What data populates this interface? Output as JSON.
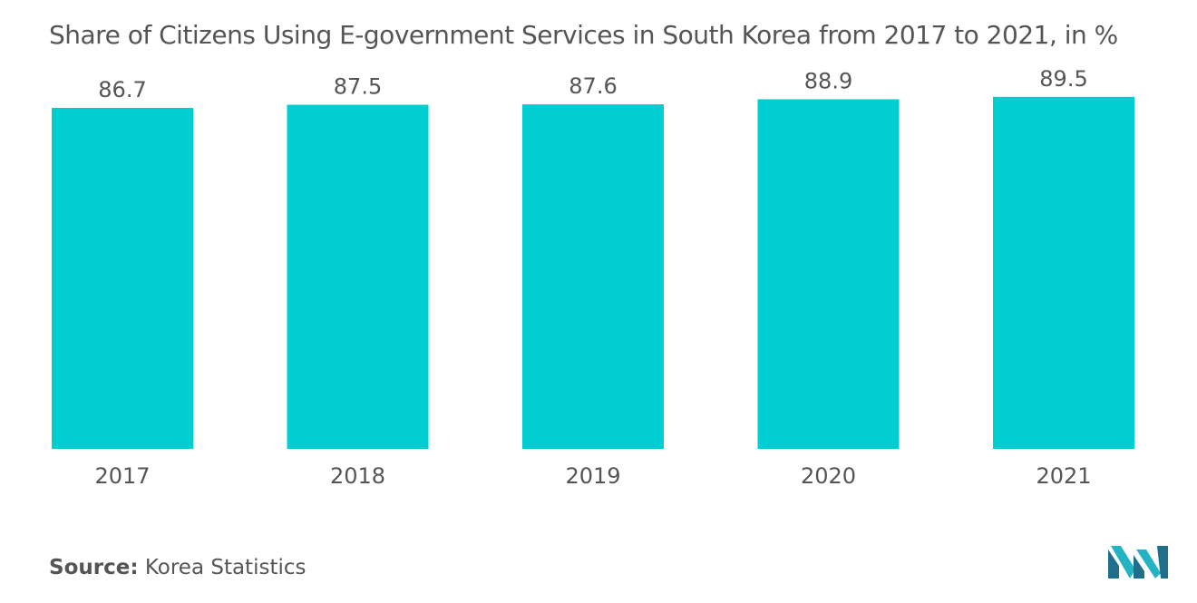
{
  "title": "Share of Citizens Using E-government Services in South Korea from 2017 to 2021, in %",
  "source": {
    "label": "Source:",
    "value": "Korea Statistics"
  },
  "colors": {
    "bar": "#00CED1",
    "text": "#555555",
    "logo_dark": "#1f6e8c",
    "logo_light": "#24b3c2"
  },
  "logo": {
    "icon": "mordor-intelligence-logo"
  },
  "chart_data": {
    "type": "bar",
    "categories": [
      "2017",
      "2018",
      "2019",
      "2020",
      "2021"
    ],
    "values": [
      86.7,
      87.5,
      87.6,
      88.9,
      89.5
    ],
    "data_labels": [
      "86.7",
      "87.5",
      "87.6",
      "88.9",
      "89.5"
    ],
    "title": "Share of Citizens Using E-government Services in South Korea from 2017 to 2021, in %",
    "xlabel": "",
    "ylabel": "",
    "ylim": [
      0,
      92
    ],
    "grid": false,
    "legend": "none"
  }
}
